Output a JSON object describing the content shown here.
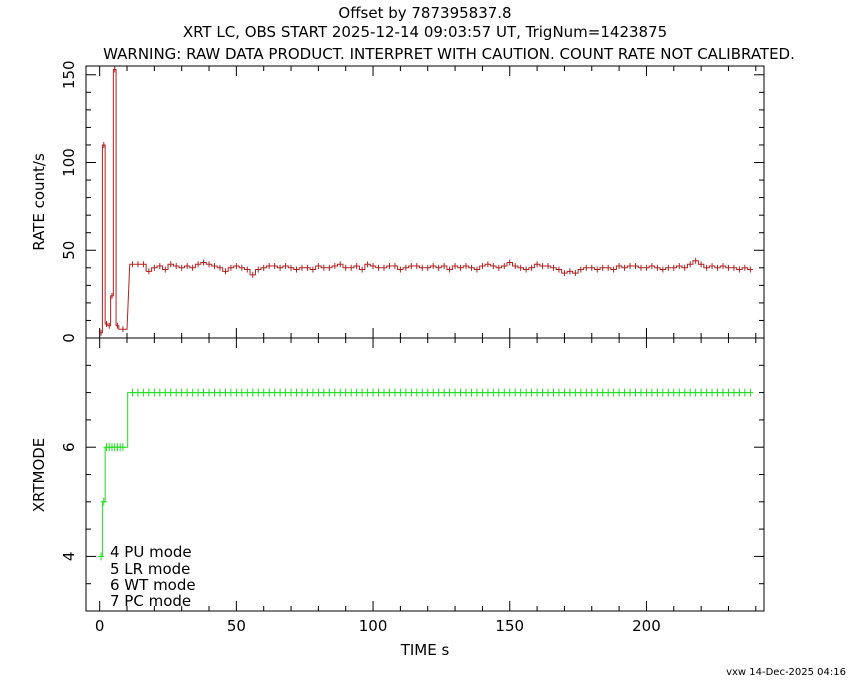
{
  "titles": {
    "line1": "Offset by 787395837.8",
    "line2": "XRT LC, OBS START 2025-12-14 09:03:57 UT, TrigNum=1423875",
    "line3": "WARNING: RAW DATA PRODUCT. INTERPRET WITH CAUTION. COUNT RATE NOT CALIBRATED."
  },
  "footer": "vxw 14-Dec-2025 04:16",
  "colors": {
    "rate": "#b22222",
    "mode": "#22dd22",
    "axes": "#000000"
  },
  "chart_data": [
    {
      "type": "line",
      "panel": "top",
      "ylabel": "RATE  count/s",
      "xlim": [
        -5,
        243
      ],
      "ylim": [
        0,
        155
      ],
      "ytick_labels": [
        "0",
        "50",
        "100",
        "150"
      ],
      "yticks": [
        0,
        50,
        100,
        150
      ],
      "series": [
        {
          "x": [
            0.5,
            1.5,
            2.5,
            3.5,
            4.5,
            5.5,
            6.5,
            8.5,
            12,
            14,
            16,
            18,
            20,
            22,
            24,
            26,
            28,
            30,
            32,
            34,
            36,
            38,
            40,
            42,
            44,
            46,
            48,
            50,
            52,
            54,
            56,
            58,
            60,
            62,
            64,
            66,
            68,
            70,
            72,
            74,
            76,
            78,
            80,
            82,
            84,
            86,
            88,
            90,
            92,
            94,
            96,
            98,
            100,
            102,
            104,
            106,
            108,
            110,
            112,
            114,
            116,
            118,
            120,
            122,
            124,
            126,
            128,
            130,
            132,
            134,
            136,
            138,
            140,
            142,
            144,
            146,
            148,
            150,
            152,
            154,
            156,
            158,
            160,
            162,
            164,
            166,
            168,
            170,
            172,
            174,
            176,
            178,
            180,
            182,
            184,
            186,
            188,
            190,
            192,
            194,
            196,
            198,
            200,
            202,
            204,
            206,
            208,
            210,
            212,
            214,
            216,
            218,
            220,
            222,
            224,
            226,
            228,
            230,
            232,
            234,
            236,
            238
          ],
          "y": [
            3,
            110,
            8,
            7,
            24,
            153,
            7,
            5,
            42,
            42,
            42,
            38,
            40,
            41,
            39,
            42,
            41,
            40,
            41,
            40,
            42,
            43,
            42,
            41,
            40,
            38,
            40,
            41,
            40,
            39,
            36,
            39,
            40,
            41,
            41,
            40,
            41,
            40,
            39,
            40,
            40,
            39,
            41,
            40,
            40,
            41,
            42,
            40,
            40,
            41,
            39,
            42,
            41,
            40,
            40,
            41,
            41,
            39,
            40,
            41,
            41,
            40,
            40,
            41,
            40,
            41,
            39,
            41,
            40,
            41,
            40,
            39,
            41,
            42,
            41,
            40,
            41,
            43,
            41,
            40,
            39,
            40,
            42,
            41,
            41,
            40,
            39,
            37,
            38,
            37,
            39,
            40,
            40,
            39,
            40,
            40,
            39,
            41,
            40,
            41,
            41,
            40,
            40,
            41,
            40,
            39,
            40,
            40,
            41,
            40,
            42,
            44,
            42,
            40,
            41,
            40,
            41,
            40,
            40,
            39,
            40,
            39
          ],
          "xerr": [
            0.5,
            0.5,
            0.5,
            0.5,
            0.5,
            0.5,
            0.5,
            1.5,
            1,
            1,
            1,
            1,
            1,
            1,
            1,
            1,
            1,
            1,
            1,
            1,
            1,
            1,
            1,
            1,
            1,
            1,
            1,
            1,
            1,
            1,
            1,
            1,
            1,
            1,
            1,
            1,
            1,
            1,
            1,
            1,
            1,
            1,
            1,
            1,
            1,
            1,
            1,
            1,
            1,
            1,
            1,
            1,
            1,
            1,
            1,
            1,
            1,
            1,
            1,
            1,
            1,
            1,
            1,
            1,
            1,
            1,
            1,
            1,
            1,
            1,
            1,
            1,
            1,
            1,
            1,
            1,
            1,
            1,
            1,
            1,
            1,
            1,
            1,
            1,
            1,
            1,
            1,
            1,
            1,
            1,
            1,
            1,
            1,
            1,
            1,
            1,
            1,
            1,
            1,
            1,
            1,
            1,
            1,
            1,
            1,
            1,
            1,
            1,
            1,
            1,
            1,
            1,
            1,
            1,
            1,
            1,
            1,
            1,
            1,
            1,
            1,
            1
          ]
        }
      ]
    },
    {
      "type": "line",
      "panel": "bottom",
      "xlabel": "TIME  s",
      "ylabel": "XRTMODE",
      "xlim": [
        -5,
        243
      ],
      "ylim": [
        3,
        8
      ],
      "xticks": [
        0,
        50,
        100,
        150,
        200
      ],
      "xtick_labels": [
        "0",
        "50",
        "100",
        "150",
        "200"
      ],
      "yticks": [
        4,
        6
      ],
      "ytick_labels": [
        "4",
        "6"
      ],
      "legend": [
        "4  PU  mode",
        "5  LR  mode",
        "6  WT  mode",
        "7  PC  mode"
      ],
      "series": [
        {
          "x": [
            0.5,
            1.5,
            2.5,
            3.5,
            4.5,
            5.5,
            6.5,
            7.5,
            8.5,
            12,
            14,
            16,
            18,
            20,
            22,
            24,
            26,
            28,
            30,
            32,
            34,
            36,
            38,
            40,
            42,
            44,
            46,
            48,
            50,
            52,
            54,
            56,
            58,
            60,
            62,
            64,
            66,
            68,
            70,
            72,
            74,
            76,
            78,
            80,
            82,
            84,
            86,
            88,
            90,
            92,
            94,
            96,
            98,
            100,
            102,
            104,
            106,
            108,
            110,
            112,
            114,
            116,
            118,
            120,
            122,
            124,
            126,
            128,
            130,
            132,
            134,
            136,
            138,
            140,
            142,
            144,
            146,
            148,
            150,
            152,
            154,
            156,
            158,
            160,
            162,
            164,
            166,
            168,
            170,
            172,
            174,
            176,
            178,
            180,
            182,
            184,
            186,
            188,
            190,
            192,
            194,
            196,
            198,
            200,
            202,
            204,
            206,
            208,
            210,
            212,
            214,
            216,
            218,
            220,
            222,
            224,
            226,
            228,
            230,
            232,
            234,
            236,
            238
          ],
          "y": [
            4,
            5,
            6,
            6,
            6,
            6,
            6,
            6,
            6,
            7,
            7,
            7,
            7,
            7,
            7,
            7,
            7,
            7,
            7,
            7,
            7,
            7,
            7,
            7,
            7,
            7,
            7,
            7,
            7,
            7,
            7,
            7,
            7,
            7,
            7,
            7,
            7,
            7,
            7,
            7,
            7,
            7,
            7,
            7,
            7,
            7,
            7,
            7,
            7,
            7,
            7,
            7,
            7,
            7,
            7,
            7,
            7,
            7,
            7,
            7,
            7,
            7,
            7,
            7,
            7,
            7,
            7,
            7,
            7,
            7,
            7,
            7,
            7,
            7,
            7,
            7,
            7,
            7,
            7,
            7,
            7,
            7,
            7,
            7,
            7,
            7,
            7,
            7,
            7,
            7,
            7,
            7,
            7,
            7,
            7,
            7,
            7,
            7,
            7,
            7,
            7,
            7,
            7,
            7,
            7,
            7,
            7,
            7,
            7,
            7,
            7,
            7,
            7,
            7,
            7,
            7,
            7,
            7,
            7,
            7,
            7,
            7,
            7
          ]
        }
      ]
    }
  ]
}
